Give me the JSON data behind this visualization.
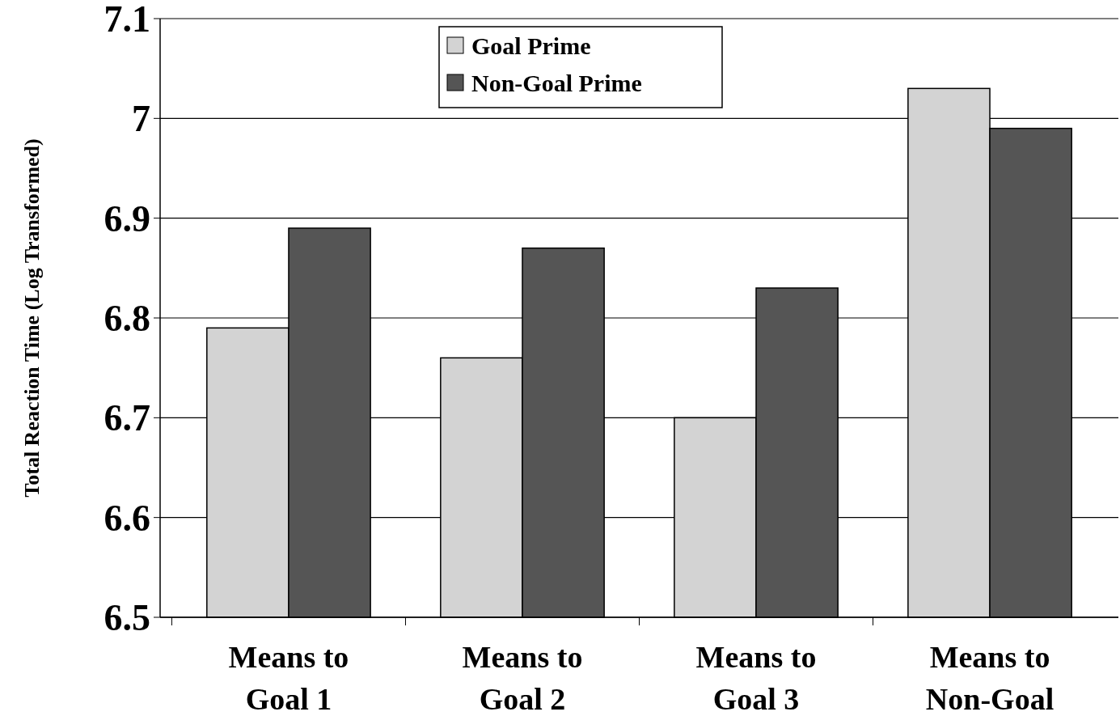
{
  "chart_data": {
    "type": "bar",
    "ylabel": "Total Reaction Time (Log Transformed)",
    "categories": [
      "Means to\nGoal 1",
      "Means to\nGoal 2",
      "Means to\nGoal 3",
      "Means to\nNon-Goal"
    ],
    "series": [
      {
        "name": "Goal Prime",
        "color": "#d3d3d3",
        "values": [
          6.79,
          6.76,
          6.7,
          7.03
        ]
      },
      {
        "name": "Non-Goal Prime",
        "color": "#555555",
        "values": [
          6.89,
          6.87,
          6.83,
          6.99
        ]
      }
    ],
    "ylim": [
      6.5,
      7.1
    ],
    "yticks": [
      6.5,
      6.6,
      6.7,
      6.8,
      6.9,
      7,
      7.1
    ],
    "grid": "y",
    "legend": "top"
  }
}
